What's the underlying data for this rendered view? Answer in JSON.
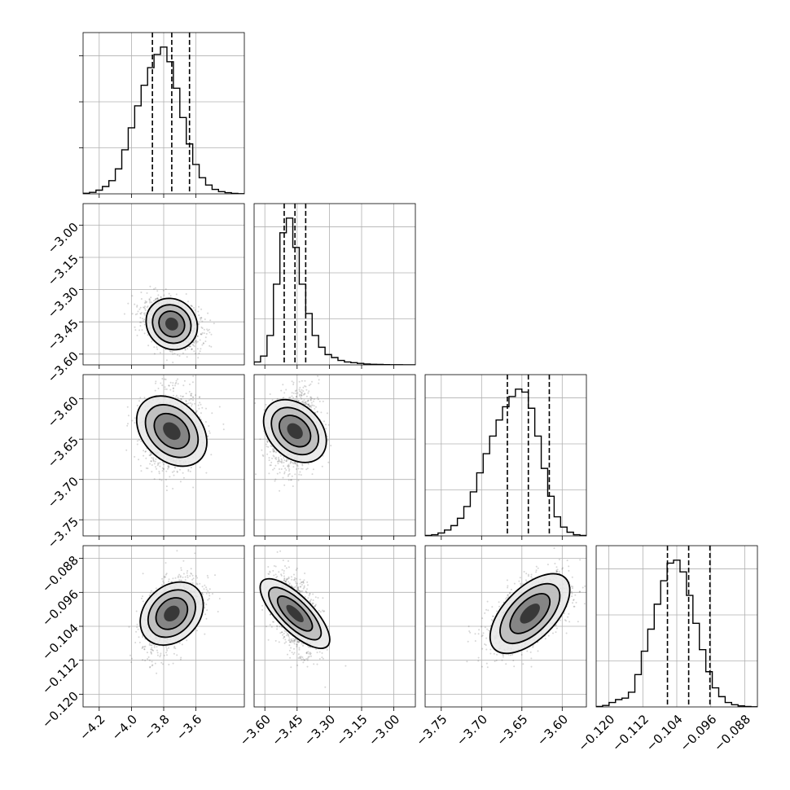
{
  "chart_data": {
    "type": "corner",
    "title": "",
    "grid": true,
    "parameters": [
      {
        "range": [
          -4.3,
          -3.3
        ],
        "ticks": [
          -4.2,
          -4.0,
          -3.8,
          -3.6
        ],
        "tick_labels": [
          "−4.2",
          "−4.0",
          "−3.8",
          "−3.6"
        ],
        "mean": -3.75,
        "sd": 0.09,
        "quantiles": [
          -3.87,
          -3.75,
          -3.64
        ],
        "hist": [
          0.004,
          0.01,
          0.025,
          0.05,
          0.09,
          0.17,
          0.3,
          0.45,
          0.6,
          0.74,
          0.86,
          0.95,
          1.0,
          0.9,
          0.72,
          0.52,
          0.34,
          0.2,
          0.11,
          0.06,
          0.03,
          0.015,
          0.008,
          0.003,
          0.001
        ]
      },
      {
        "range": [
          -3.65,
          -2.9
        ],
        "ticks": [
          -3.6,
          -3.45,
          -3.3,
          -3.15,
          -3.0
        ],
        "tick_labels": [
          "−3.60",
          "−3.45",
          "−3.30",
          "−3.15",
          "−3.00"
        ],
        "mean": -3.46,
        "sd": 0.055,
        "quantiles": [
          -3.51,
          -3.46,
          -3.41
        ],
        "hist": [
          0.02,
          0.06,
          0.2,
          0.55,
          0.9,
          1.0,
          0.8,
          0.55,
          0.35,
          0.2,
          0.12,
          0.07,
          0.05,
          0.03,
          0.02,
          0.015,
          0.01,
          0.006,
          0.004,
          0.003,
          0.002,
          0.001,
          0.001,
          0,
          0
        ]
      },
      {
        "range": [
          -3.77,
          -3.57
        ],
        "ticks": [
          -3.75,
          -3.7,
          -3.65,
          -3.6
        ],
        "tick_labels": [
          "−3.75",
          "−3.70",
          "−3.65",
          "−3.60"
        ],
        "mean": -3.64,
        "sd": 0.025,
        "quantiles": [
          -3.668,
          -3.642,
          -3.616
        ],
        "hist": [
          0.003,
          0.008,
          0.02,
          0.04,
          0.07,
          0.12,
          0.2,
          0.3,
          0.43,
          0.56,
          0.68,
          0.79,
          0.88,
          0.95,
          1.0,
          0.98,
          0.87,
          0.68,
          0.46,
          0.27,
          0.13,
          0.06,
          0.025,
          0.008,
          0.003
        ]
      },
      {
        "range": [
          -0.123,
          -0.085
        ],
        "ticks": [
          -0.12,
          -0.112,
          -0.104,
          -0.096,
          -0.088
        ],
        "tick_labels": [
          "−0.120",
          "−0.112",
          "−0.104",
          "−0.096",
          "−0.088"
        ],
        "mean": -0.101,
        "sd": 0.0045,
        "quantiles": [
          -0.1062,
          -0.1012,
          -0.0962
        ],
        "hist": [
          0.003,
          0.01,
          0.03,
          0.05,
          0.06,
          0.1,
          0.22,
          0.38,
          0.53,
          0.7,
          0.86,
          0.98,
          1.0,
          0.92,
          0.76,
          0.57,
          0.39,
          0.24,
          0.13,
          0.07,
          0.03,
          0.015,
          0.007,
          0.003,
          0.001
        ]
      }
    ],
    "pairs": [
      {
        "row": 1,
        "col": 0,
        "rho": -0.3
      },
      {
        "row": 2,
        "col": 0,
        "rho": 0.0
      },
      {
        "row": 2,
        "col": 1,
        "rho": 0.2
      },
      {
        "row": 3,
        "col": 0,
        "rho": 0.5
      },
      {
        "row": 3,
        "col": 1,
        "rho": -0.45
      },
      {
        "row": 3,
        "col": 2,
        "rho": 0.55
      }
    ],
    "contour_levels": [
      0.5,
      1.0,
      1.5,
      2.0
    ],
    "colors": {
      "points": "#444444",
      "lines": "#000000",
      "grid": "#b0b0b0"
    }
  }
}
